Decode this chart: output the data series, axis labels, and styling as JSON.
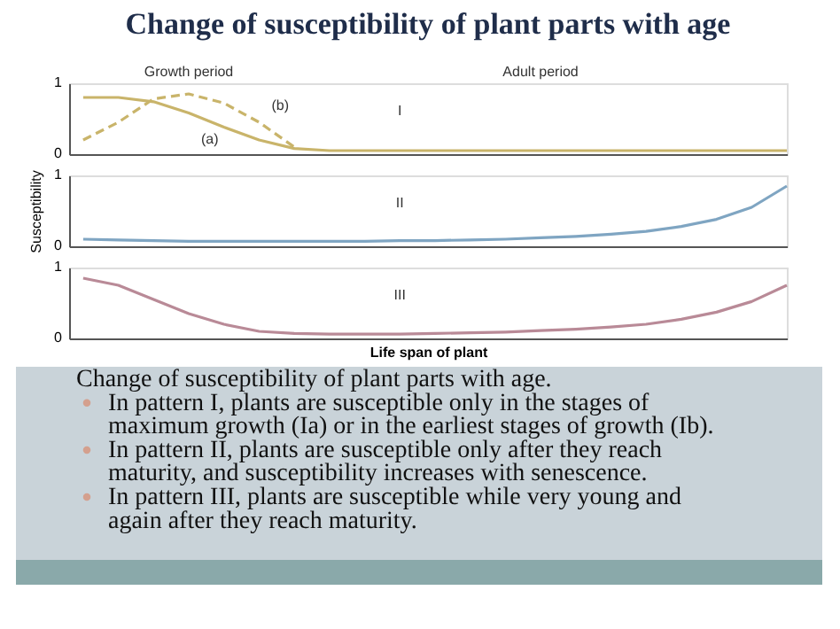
{
  "chart_data": [
    {
      "type": "line",
      "title": "Change of susceptibility of plant parts with age",
      "categories": [
        null,
        null,
        null,
        null,
        null,
        null,
        null,
        null,
        null,
        null,
        null,
        null,
        null,
        null,
        null,
        null,
        null,
        null,
        null,
        null,
        null
      ],
      "ylim": [
        0,
        1
      ],
      "yticks": [
        0,
        1
      ],
      "tick_labels": "y",
      "marker": "none",
      "series": [
        {
          "color": "#c9b46a",
          "line_style": "solid",
          "values": [
            0.8,
            0.8,
            0.74,
            0.58,
            0.38,
            0.2,
            0.08,
            0.05,
            0.05,
            0.05,
            0.05,
            0.05,
            0.05,
            0.05,
            0.05,
            0.05,
            0.05,
            0.05,
            0.05,
            0.05,
            0.05
          ]
        },
        {
          "color": "#c9b46a",
          "line_style": "dashed",
          "values": [
            0.2,
            0.45,
            0.78,
            0.85,
            0.72,
            0.45,
            0.1,
            null,
            null,
            null,
            null,
            null,
            null,
            null,
            null,
            null,
            null,
            null,
            null,
            null,
            null
          ]
        }
      ],
      "annotations": [
        "Growth period",
        "Adult period",
        "I",
        "(a)",
        "(b)"
      ]
    },
    {
      "type": "line",
      "ylabel": "Susceptibility",
      "categories": [
        null,
        null,
        null,
        null,
        null,
        null,
        null,
        null,
        null,
        null,
        null,
        null,
        null,
        null,
        null,
        null,
        null,
        null,
        null,
        null,
        null
      ],
      "ylim": [
        0,
        1
      ],
      "yticks": [
        0,
        1
      ],
      "tick_labels": "y",
      "marker": "none",
      "series": [
        {
          "color": "#7fa5c2",
          "line_style": "solid",
          "values": [
            0.1,
            0.09,
            0.08,
            0.07,
            0.07,
            0.07,
            0.07,
            0.07,
            0.07,
            0.08,
            0.08,
            0.09,
            0.1,
            0.12,
            0.14,
            0.17,
            0.21,
            0.28,
            0.38,
            0.55,
            0.85
          ]
        }
      ],
      "annotations": [
        "II"
      ]
    },
    {
      "type": "line",
      "xlabel": "Life span of plant",
      "categories": [
        null,
        null,
        null,
        null,
        null,
        null,
        null,
        null,
        null,
        null,
        null,
        null,
        null,
        null,
        null,
        null,
        null,
        null,
        null,
        null,
        null
      ],
      "ylim": [
        0,
        1
      ],
      "yticks": [
        0,
        1
      ],
      "tick_labels": "y",
      "marker": "none",
      "series": [
        {
          "color": "#b98a97",
          "line_style": "solid",
          "values": [
            0.85,
            0.75,
            0.55,
            0.35,
            0.2,
            0.1,
            0.07,
            0.06,
            0.06,
            0.06,
            0.07,
            0.08,
            0.09,
            0.11,
            0.13,
            0.16,
            0.2,
            0.27,
            0.37,
            0.52,
            0.75
          ]
        }
      ],
      "annotations": [
        "III"
      ]
    },
    {
      "type": "other",
      "annotations": [
        "Change of susceptibility of plant parts with age.",
        "In pattern I, plants are susceptible only in the stages of maximum growth (Ia) or in the earliest stages of growth (Ib).",
        "In pattern II, plants are susceptible only after they reach maturity, and susceptibility increases with senescence.",
        "In pattern III, plants are susceptible while very young and again after they reach maturity."
      ]
    }
  ]
}
